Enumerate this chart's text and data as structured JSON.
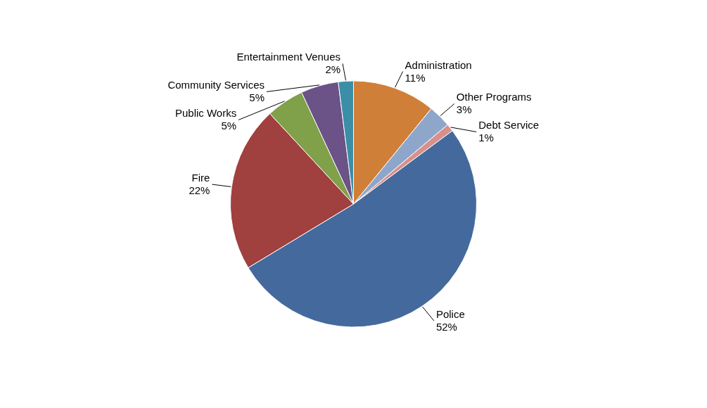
{
  "chart_data": {
    "type": "pie",
    "categories": [
      "Administration",
      "Other Programs",
      "Debt Service",
      "Police",
      "Fire",
      "Public Works",
      "Community Services",
      "Entertainment Venues"
    ],
    "values": [
      11,
      3,
      1,
      52,
      22,
      5,
      5,
      2
    ],
    "value_labels": [
      "11%",
      "3%",
      "1%",
      "52%",
      "22%",
      "5%",
      "5%",
      "2%"
    ],
    "colors": [
      "#d07f39",
      "#8fa6cb",
      "#d9908a",
      "#44699c",
      "#a0403f",
      "#80a04a",
      "#6b5287",
      "#3b8ea5"
    ]
  }
}
